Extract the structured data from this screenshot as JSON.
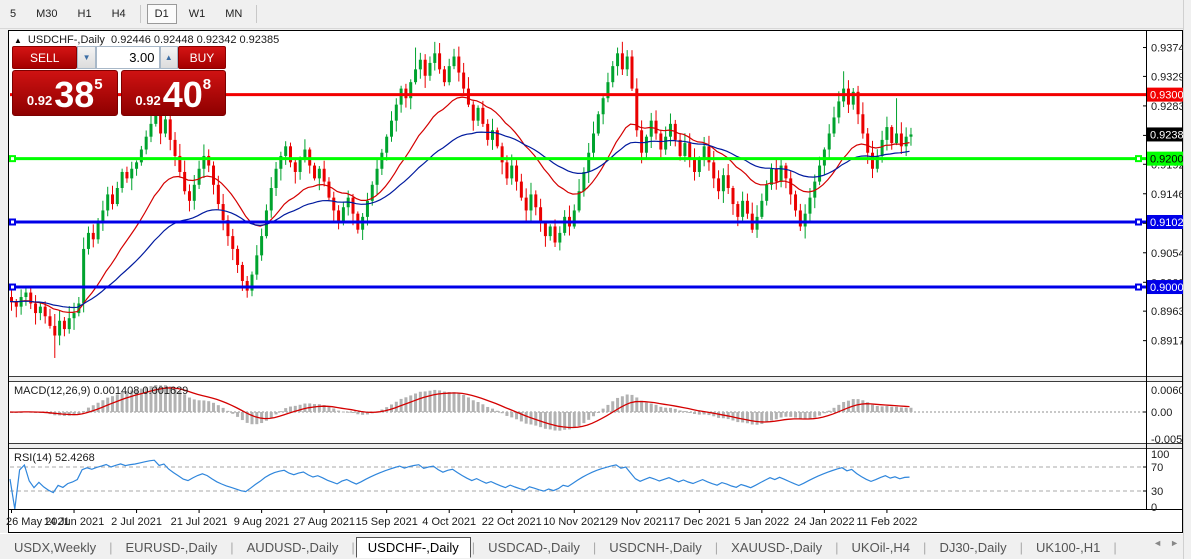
{
  "toolbar": {
    "timeframes": [
      {
        "label": "5",
        "active": false
      },
      {
        "label": "M30",
        "active": false
      },
      {
        "label": "H1",
        "active": false
      },
      {
        "label": "H4",
        "active": false
      },
      {
        "label": "D1",
        "active": true
      },
      {
        "label": "W1",
        "active": false
      },
      {
        "label": "MN",
        "active": false
      }
    ]
  },
  "chart_header": {
    "collapse_icon": "▲",
    "symbol_label": "USDCHF-,Daily",
    "quotes": "0.92446 0.92448 0.92342 0.92385"
  },
  "trade_panel": {
    "sell_label": "SELL",
    "buy_label": "BUY",
    "volume": "3.00",
    "spinner_down": "▼",
    "spinner_up": "▲",
    "sell_price": {
      "prefix": "0.92",
      "big": "38",
      "sup": "5"
    },
    "buy_price": {
      "prefix": "0.92",
      "big": "40",
      "sup": "8"
    }
  },
  "chart_data": {
    "type": "candlestick",
    "symbol": "USDCHF",
    "timeframe": "Daily",
    "ohlc_current": {
      "open": 0.92446,
      "high": 0.92448,
      "low": 0.92342,
      "close": 0.92385
    },
    "price_axis_ticks": [
      0.9374,
      0.9329,
      0.9283,
      0.9237,
      0.9192,
      0.9146,
      0.91,
      0.9054,
      0.9008,
      0.8963,
      0.8917
    ],
    "y_range": [
      0.8865,
      0.9392
    ],
    "date_ticks": [
      {
        "idx": 0,
        "label": "26 May 2021"
      },
      {
        "idx": 13,
        "label": "14 Jun 2021"
      },
      {
        "idx": 26,
        "label": "2 Jul 2021"
      },
      {
        "idx": 39,
        "label": "21 Jul 2021"
      },
      {
        "idx": 52,
        "label": "9 Aug 2021"
      },
      {
        "idx": 65,
        "label": "27 Aug 2021"
      },
      {
        "idx": 78,
        "label": "15 Sep 2021"
      },
      {
        "idx": 91,
        "label": "4 Oct 2021"
      },
      {
        "idx": 104,
        "label": "22 Oct 2021"
      },
      {
        "idx": 117,
        "label": "10 Nov 2021"
      },
      {
        "idx": 130,
        "label": "29 Nov 2021"
      },
      {
        "idx": 143,
        "label": "17 Dec 2021"
      },
      {
        "idx": 156,
        "label": "5 Jan 2022"
      },
      {
        "idx": 169,
        "label": "24 Jan 2022"
      },
      {
        "idx": 182,
        "label": "11 Feb 2022"
      }
    ],
    "first_open": 0.8985,
    "closes": [
      0.8978,
      0.897,
      0.8985,
      0.8992,
      0.8975,
      0.896,
      0.897,
      0.8955,
      0.894,
      0.8925,
      0.8948,
      0.8935,
      0.8952,
      0.896,
      0.8975,
      0.906,
      0.9085,
      0.9075,
      0.91,
      0.912,
      0.9145,
      0.913,
      0.9155,
      0.918,
      0.917,
      0.9185,
      0.9195,
      0.9215,
      0.9235,
      0.9255,
      0.9268,
      0.924,
      0.9262,
      0.923,
      0.9205,
      0.918,
      0.915,
      0.9135,
      0.916,
      0.9185,
      0.9205,
      0.919,
      0.916,
      0.913,
      0.9105,
      0.908,
      0.906,
      0.9035,
      0.901,
      0.8995,
      0.902,
      0.905,
      0.908,
      0.912,
      0.9155,
      0.9185,
      0.9205,
      0.922,
      0.9195,
      0.918,
      0.92,
      0.9215,
      0.919,
      0.917,
      0.9185,
      0.9165,
      0.914,
      0.912,
      0.91,
      0.9125,
      0.914,
      0.9115,
      0.909,
      0.911,
      0.9135,
      0.916,
      0.9185,
      0.921,
      0.9235,
      0.926,
      0.9285,
      0.931,
      0.9295,
      0.932,
      0.934,
      0.9355,
      0.933,
      0.935,
      0.9365,
      0.934,
      0.932,
      0.9345,
      0.936,
      0.9335,
      0.931,
      0.9285,
      0.926,
      0.928,
      0.9255,
      0.923,
      0.9245,
      0.922,
      0.9195,
      0.917,
      0.919,
      0.9165,
      0.914,
      0.912,
      0.9145,
      0.9125,
      0.91,
      0.908,
      0.9095,
      0.907,
      0.9085,
      0.911,
      0.9095,
      0.912,
      0.915,
      0.918,
      0.921,
      0.924,
      0.927,
      0.9295,
      0.932,
      0.9345,
      0.9365,
      0.934,
      0.936,
      0.931,
      0.9245,
      0.921,
      0.9235,
      0.926,
      0.924,
      0.9215,
      0.9235,
      0.9255,
      0.923,
      0.9205,
      0.9225,
      0.92,
      0.918,
      0.92,
      0.922,
      0.9195,
      0.917,
      0.915,
      0.9175,
      0.9155,
      0.913,
      0.911,
      0.9135,
      0.9115,
      0.909,
      0.911,
      0.9135,
      0.916,
      0.9185,
      0.9165,
      0.919,
      0.917,
      0.9145,
      0.912,
      0.9095,
      0.9115,
      0.914,
      0.9165,
      0.919,
      0.9215,
      0.924,
      0.9265,
      0.929,
      0.931,
      0.9285,
      0.9305,
      0.927,
      0.924,
      0.921,
      0.9185,
      0.9205,
      0.923,
      0.925,
      0.9225,
      0.924,
      0.922,
      0.9235,
      0.92385
    ],
    "high_overrides": {
      "84": 0.9374,
      "92": 0.9372,
      "126": 0.9374,
      "128": 0.937,
      "173": 0.9337,
      "184": 0.9295
    },
    "low_overrides": {
      "9": 0.889,
      "49": 0.8984,
      "113": 0.9063,
      "154": 0.9085,
      "164": 0.9088
    },
    "bull_color": "#00a32e",
    "bear_color": "#ea0000",
    "hlines": [
      {
        "price": 0.93006,
        "color": "#f20000",
        "width": 3,
        "label": "0.93006",
        "label_bg": "#f20000",
        "label_fg": "#ffffff",
        "handles": false
      },
      {
        "price": 0.92008,
        "color": "#00ff00",
        "width": 3,
        "label": "0.92008",
        "label_bg": "#00ff00",
        "label_fg": "#000000",
        "handles": true
      },
      {
        "price": 0.9102,
        "color": "#0000e8",
        "width": 3,
        "label": "0.91020",
        "label_bg": "#0000e8",
        "label_fg": "#ffffff",
        "handles": true
      },
      {
        "price": 0.90006,
        "color": "#0000e8",
        "width": 3,
        "label": "0.90006",
        "label_bg": "#0000e8",
        "label_fg": "#ffffff",
        "handles": true
      }
    ],
    "current_price": {
      "value": 0.92385,
      "label": "0.92385",
      "label_bg": "#000000",
      "label_fg": "#ffffff"
    },
    "overlays": [
      {
        "name": "ma-fast",
        "color": "#d40000"
      },
      {
        "name": "ma-slow",
        "color": "#001a9e"
      }
    ],
    "macd": {
      "name": "MACD(12,26,9)",
      "values": "0.001408 0.001629",
      "main": 0.001408,
      "signal": 0.001629,
      "axis_ticks": [
        "0.006038",
        "0.00",
        "-0.005223"
      ],
      "hist_color": "#b2b2b2",
      "signal_color": "#d40000"
    },
    "rsi": {
      "name": "RSI(14)",
      "value": "52.4268",
      "current": 52.4268,
      "axis_ticks": [
        "100",
        "70",
        "30",
        "0"
      ],
      "levels": [
        70,
        30
      ],
      "line_color": "#2f86dc"
    }
  },
  "tabs": {
    "items": [
      {
        "label": "USDX,Weekly",
        "active": false
      },
      {
        "label": "EURUSD-,Daily",
        "active": false
      },
      {
        "label": "AUDUSD-,Daily",
        "active": false
      },
      {
        "label": "USDCHF-,Daily",
        "active": true
      },
      {
        "label": "USDCAD-,Daily",
        "active": false
      },
      {
        "label": "USDCNH-,Daily",
        "active": false
      },
      {
        "label": "XAUUSD-,Daily",
        "active": false
      },
      {
        "label": "UKOil-,H4",
        "active": false
      },
      {
        "label": "DJ30-,Daily",
        "active": false
      },
      {
        "label": "UK100-,H1",
        "active": false
      }
    ],
    "scroll_left": "◄",
    "scroll_right": "►"
  }
}
